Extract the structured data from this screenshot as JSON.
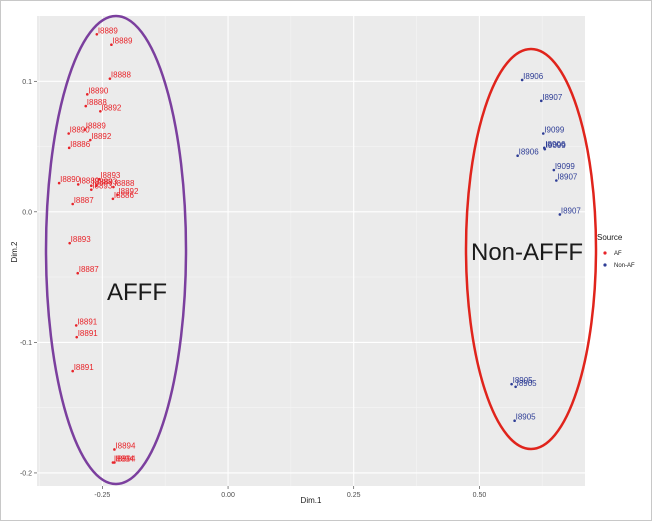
{
  "chart_data": {
    "type": "scatter",
    "xlabel": "Dim.1",
    "ylabel": "Dim.2",
    "xlim": [
      -0.38,
      0.71
    ],
    "ylim": [
      -0.21,
      0.15
    ],
    "xticks": [
      -0.25,
      0.0,
      0.25,
      0.5
    ],
    "xtick_labels": [
      "-0.25",
      "0.00",
      "0.25",
      "0.50"
    ],
    "yticks": [
      -0.2,
      -0.1,
      0.0,
      0.1
    ],
    "ytick_labels": [
      "-0.2",
      "-0.1",
      "0.0",
      "0.1"
    ],
    "grid": true,
    "legend": {
      "title": "Source",
      "position": "right",
      "entries": [
        {
          "label": "AF",
          "color": "#e8242a"
        },
        {
          "label": "Non-AF",
          "color": "#2e3d96"
        }
      ]
    },
    "series": [
      {
        "name": "AF",
        "color": "#e8242a",
        "points": [
          {
            "x": -0.261,
            "y": 0.136,
            "label": "I8889"
          },
          {
            "x": -0.232,
            "y": 0.128,
            "label": "I8889"
          },
          {
            "x": -0.235,
            "y": 0.102,
            "label": "I8888"
          },
          {
            "x": -0.28,
            "y": 0.09,
            "label": "I8890"
          },
          {
            "x": -0.283,
            "y": 0.081,
            "label": "I8888"
          },
          {
            "x": -0.254,
            "y": 0.077,
            "label": "I8892"
          },
          {
            "x": -0.285,
            "y": 0.063,
            "label": "I8889"
          },
          {
            "x": -0.317,
            "y": 0.06,
            "label": "I8890"
          },
          {
            "x": -0.274,
            "y": 0.055,
            "label": "I8892"
          },
          {
            "x": -0.316,
            "y": 0.049,
            "label": "I8886"
          },
          {
            "x": -0.256,
            "y": 0.025,
            "label": "I8893"
          },
          {
            "x": -0.336,
            "y": 0.022,
            "label": "I8890"
          },
          {
            "x": -0.298,
            "y": 0.021,
            "label": "I8889"
          },
          {
            "x": -0.272,
            "y": 0.02,
            "label": "I8888"
          },
          {
            "x": -0.262,
            "y": 0.02,
            "label": "I8893"
          },
          {
            "x": -0.228,
            "y": 0.019,
            "label": "I8888"
          },
          {
            "x": -0.272,
            "y": 0.017,
            "label": "I8893"
          },
          {
            "x": -0.22,
            "y": 0.013,
            "label": "I8892"
          },
          {
            "x": -0.229,
            "y": 0.01,
            "label": "I8886"
          },
          {
            "x": -0.309,
            "y": 0.006,
            "label": "I8887"
          },
          {
            "x": -0.315,
            "y": -0.024,
            "label": "I8893"
          },
          {
            "x": -0.299,
            "y": -0.047,
            "label": "I8887"
          },
          {
            "x": -0.302,
            "y": -0.087,
            "label": "I8891"
          },
          {
            "x": -0.301,
            "y": -0.096,
            "label": "I8891"
          },
          {
            "x": -0.309,
            "y": -0.122,
            "label": "I8891"
          },
          {
            "x": -0.226,
            "y": -0.182,
            "label": "I8894"
          },
          {
            "x": -0.229,
            "y": -0.192,
            "label": "I8894"
          },
          {
            "x": -0.226,
            "y": -0.192,
            "label": "I8894"
          }
        ]
      },
      {
        "name": "Non-AF",
        "color": "#2e3d96",
        "points": [
          {
            "x": 0.585,
            "y": 0.101,
            "label": "I8906"
          },
          {
            "x": 0.623,
            "y": 0.085,
            "label": "I8907"
          },
          {
            "x": 0.627,
            "y": 0.06,
            "label": "I9099"
          },
          {
            "x": 0.629,
            "y": 0.049,
            "label": "I8906"
          },
          {
            "x": 0.63,
            "y": 0.048,
            "label": "I9099"
          },
          {
            "x": 0.576,
            "y": 0.043,
            "label": "I8906"
          },
          {
            "x": 0.648,
            "y": 0.032,
            "label": "I9099"
          },
          {
            "x": 0.653,
            "y": 0.024,
            "label": "I8907"
          },
          {
            "x": 0.66,
            "y": -0.002,
            "label": "I8907"
          },
          {
            "x": 0.564,
            "y": -0.132,
            "label": "I8905"
          },
          {
            "x": 0.572,
            "y": -0.134,
            "label": "I8905"
          },
          {
            "x": 0.57,
            "y": -0.16,
            "label": "I8905"
          }
        ]
      }
    ],
    "annotations": [
      {
        "text": "AFFF",
        "color": "#7b3f9e"
      },
      {
        "text": "Non-AFFF",
        "color": "#e0241c"
      }
    ]
  }
}
